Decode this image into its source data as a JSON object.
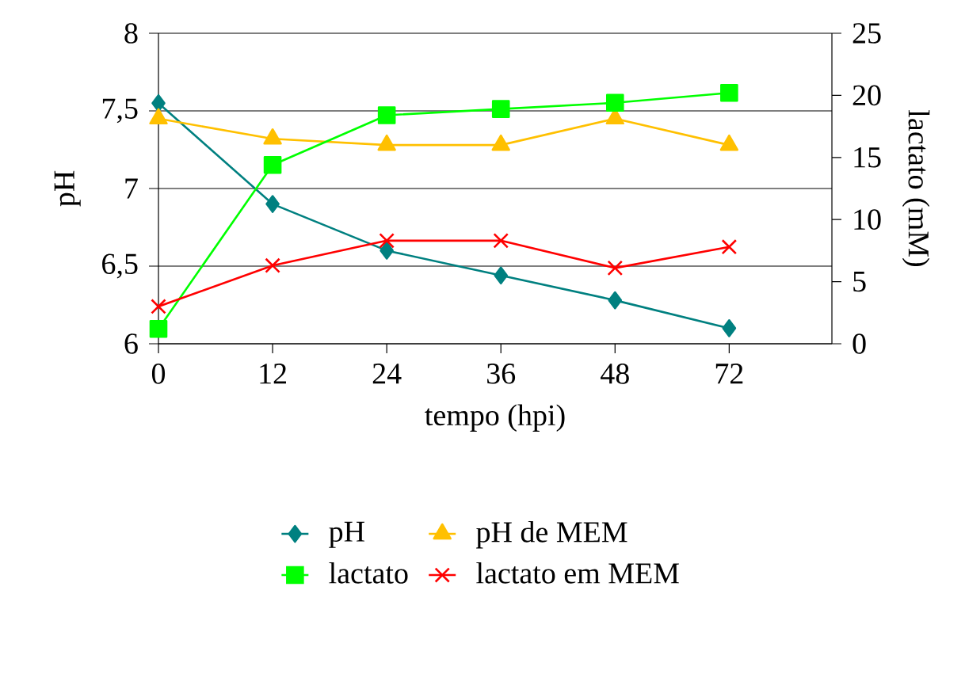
{
  "chart_data": {
    "type": "line",
    "xlabel": "tempo (hpi)",
    "ylabel": "pH",
    "y2label": "lactato (mM)",
    "categories": [
      "0",
      "12",
      "24",
      "36",
      "48",
      "72"
    ],
    "series": [
      {
        "name": "pH",
        "color": "#008080",
        "marker": "diamond",
        "values": [
          7.55,
          6.9,
          6.6,
          6.44,
          6.28,
          6.1
        ]
      },
      {
        "name": "pH de MEM",
        "color": "#ffc000",
        "marker": "triangle",
        "values": [
          7.45,
          7.32,
          7.28,
          7.28,
          7.45,
          7.28
        ]
      },
      {
        "name": "lactato",
        "color": "#00ff00",
        "marker": "square",
        "axis": "y2",
        "values": [
          1.2,
          14.4,
          18.4,
          18.9,
          19.4,
          20.2
        ]
      },
      {
        "name": "lactato em MEM",
        "color": "#ff0000",
        "marker": "cross",
        "axis": "y2",
        "values": [
          3.0,
          6.3,
          8.3,
          8.3,
          6.1,
          7.8
        ]
      }
    ],
    "ylim": [
      6,
      8
    ],
    "yticks": [
      6,
      {
        "value": 6.5,
        "label": "6,5"
      },
      7,
      {
        "value": 7.5,
        "label": "7,5"
      },
      8
    ],
    "y2lim": [
      0,
      25
    ],
    "y2ticks": [
      0,
      5,
      10,
      15,
      20,
      25
    ],
    "grid": "y",
    "legend": "bottom"
  }
}
